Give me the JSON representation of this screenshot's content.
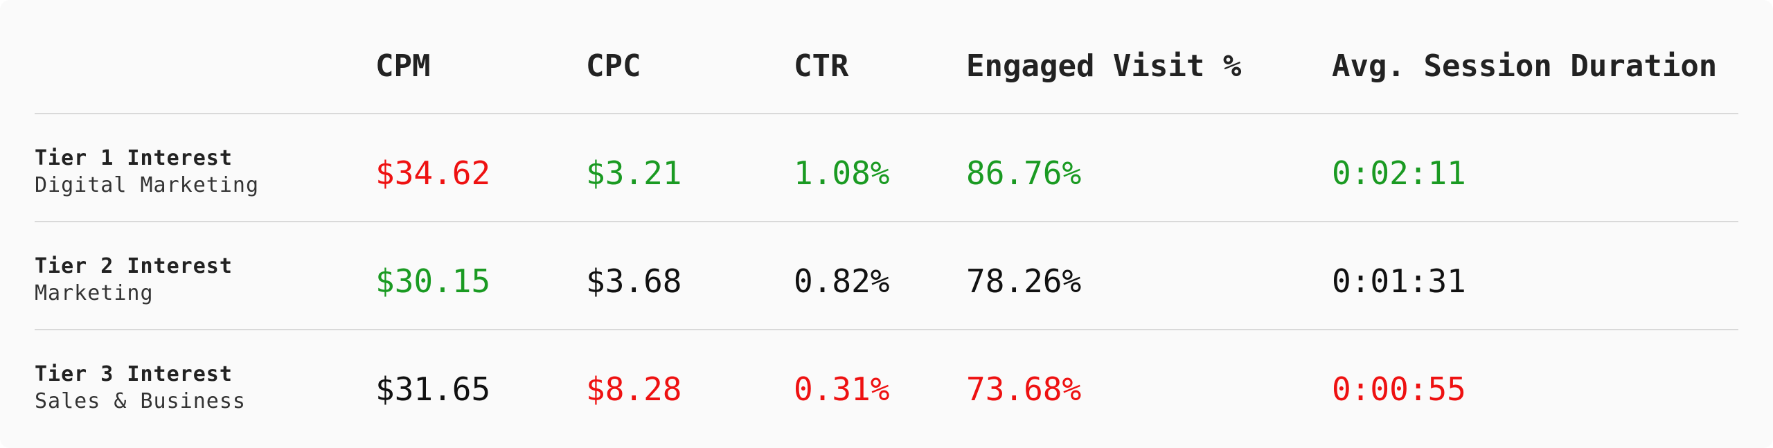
{
  "columns": [
    "CPM",
    "CPC",
    "CTR",
    "Engaged Visit %",
    "Avg. Session Duration"
  ],
  "rows": [
    {
      "tier": "Tier 1 Interest",
      "category": "Digital Marketing",
      "values": [
        "$34.62",
        "$3.21",
        "1.08%",
        "86.76%",
        "0:02:11"
      ],
      "status": [
        "red",
        "green",
        "green",
        "green",
        "green"
      ]
    },
    {
      "tier": "Tier 2 Interest",
      "category": "Marketing",
      "values": [
        "$30.15",
        "$3.68",
        "0.82%",
        "78.26%",
        "0:01:31"
      ],
      "status": [
        "green",
        "neutral",
        "neutral",
        "neutral",
        "neutral"
      ]
    },
    {
      "tier": "Tier 3 Interest",
      "category": "Sales & Business",
      "values": [
        "$31.65",
        "$8.28",
        "0.31%",
        "73.68%",
        "0:00:55"
      ],
      "status": [
        "neutral",
        "red",
        "red",
        "red",
        "red"
      ]
    }
  ],
  "colors": {
    "good": "#1a9a22",
    "bad": "#ee1111",
    "neutral": "#111111"
  }
}
